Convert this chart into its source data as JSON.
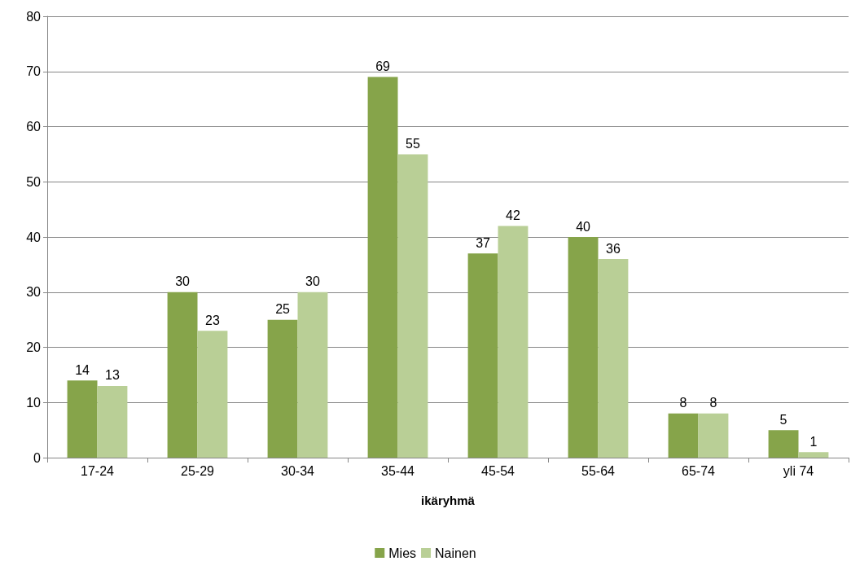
{
  "chart_data": {
    "type": "bar",
    "xlabel": "ikäryhmä",
    "categories": [
      "17-24",
      "25-29",
      "30-34",
      "35-44",
      "45-54",
      "55-64",
      "65-74",
      "yli 74"
    ],
    "series": [
      {
        "name": "Mies",
        "color": "#86a44a",
        "values": [
          14,
          30,
          25,
          69,
          37,
          40,
          8,
          5
        ]
      },
      {
        "name": "Nainen",
        "color": "#b9cf96",
        "values": [
          13,
          23,
          30,
          55,
          42,
          36,
          8,
          1
        ]
      }
    ],
    "ylim": [
      0,
      80
    ],
    "yticks": [
      0,
      10,
      20,
      30,
      40,
      50,
      60,
      70,
      80
    ],
    "grid": "y",
    "legend": "bottom",
    "data_labels": true
  }
}
